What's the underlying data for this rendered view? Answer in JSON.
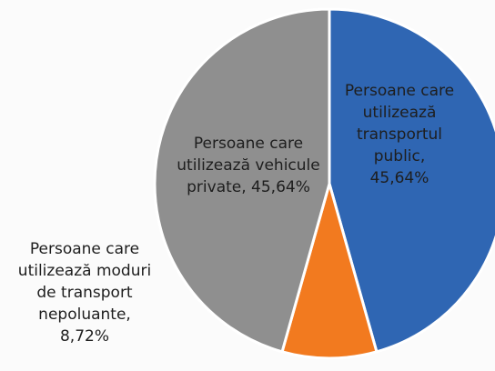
{
  "chart_data": {
    "type": "pie",
    "categories": [
      "Persoane care utilizează transportul public,",
      "Persoane care utilizează moduri de transport nepoluante,",
      "Persoane care utilizează vehicule private,"
    ],
    "values": [
      45.64,
      8.72,
      45.64
    ],
    "value_labels": [
      "45,64%",
      "8,72%",
      "45,64%"
    ],
    "colors": [
      "#2f66b3",
      "#f27a1f",
      "#8f8f8f"
    ]
  }
}
